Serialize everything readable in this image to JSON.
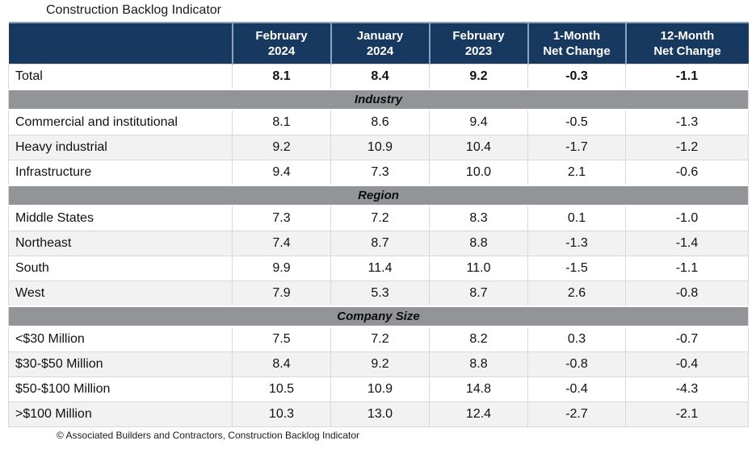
{
  "title": "Construction Backlog Indicator",
  "footer": "© Associated Builders and Contractors, Construction Backlog Indicator",
  "colors": {
    "header_bg": "#17395f",
    "header_text": "#ffffff",
    "header_divider": "#8ca1c0",
    "section_bg": "#929497",
    "row_alt_bg": "#f2f2f2",
    "grid": "#d9d9d9"
  },
  "table": {
    "header": [
      {
        "label": ""
      },
      {
        "label": "February\n2024"
      },
      {
        "label": "January\n2024"
      },
      {
        "label": "February\n2023"
      },
      {
        "label": "1-Month\nNet Change"
      },
      {
        "label": "12-Month\nNet Change"
      }
    ],
    "total_row": {
      "label": "Total",
      "values": [
        "8.1",
        "8.4",
        "9.2",
        "-0.3",
        "-1.1"
      ]
    },
    "sections": [
      {
        "name": "Industry",
        "rows": [
          {
            "label": "Commercial and institutional",
            "values": [
              "8.1",
              "8.6",
              "9.4",
              "-0.5",
              "-1.3"
            ]
          },
          {
            "label": "Heavy industrial",
            "values": [
              "9.2",
              "10.9",
              "10.4",
              "-1.7",
              "-1.2"
            ]
          },
          {
            "label": "Infrastructure",
            "values": [
              "9.4",
              "7.3",
              "10.0",
              "2.1",
              "-0.6"
            ]
          }
        ]
      },
      {
        "name": "Region",
        "rows": [
          {
            "label": "Middle States",
            "values": [
              "7.3",
              "7.2",
              "8.3",
              "0.1",
              "-1.0"
            ]
          },
          {
            "label": "Northeast",
            "values": [
              "7.4",
              "8.7",
              "8.8",
              "-1.3",
              "-1.4"
            ]
          },
          {
            "label": "South",
            "values": [
              "9.9",
              "11.4",
              "11.0",
              "-1.5",
              "-1.1"
            ]
          },
          {
            "label": "West",
            "values": [
              "7.9",
              "5.3",
              "8.7",
              "2.6",
              "-0.8"
            ]
          }
        ]
      },
      {
        "name": "Company Size",
        "rows": [
          {
            "label": "<$30 Million",
            "values": [
              "7.5",
              "7.2",
              "8.2",
              "0.3",
              "-0.7"
            ]
          },
          {
            "label": "$30-$50 Million",
            "values": [
              "8.4",
              "9.2",
              "8.8",
              "-0.8",
              "-0.4"
            ]
          },
          {
            "label": "$50-$100 Million",
            "values": [
              "10.5",
              "10.9",
              "14.8",
              "-0.4",
              "-4.3"
            ]
          },
          {
            "label": ">$100 Million",
            "values": [
              "10.3",
              "13.0",
              "12.4",
              "-2.7",
              "-2.1"
            ]
          }
        ]
      }
    ]
  },
  "chart_data": {
    "type": "table",
    "title": "Construction Backlog Indicator",
    "columns": [
      "",
      "February 2024",
      "January 2024",
      "February 2023",
      "1-Month Net Change",
      "12-Month Net Change"
    ],
    "rows": [
      {
        "label": "Total",
        "section": null,
        "values": [
          8.1,
          8.4,
          9.2,
          -0.3,
          -1.1
        ]
      },
      {
        "label": "Commercial and institutional",
        "section": "Industry",
        "values": [
          8.1,
          8.6,
          9.4,
          -0.5,
          -1.3
        ]
      },
      {
        "label": "Heavy industrial",
        "section": "Industry",
        "values": [
          9.2,
          10.9,
          10.4,
          -1.7,
          -1.2
        ]
      },
      {
        "label": "Infrastructure",
        "section": "Industry",
        "values": [
          9.4,
          7.3,
          10.0,
          2.1,
          -0.6
        ]
      },
      {
        "label": "Middle States",
        "section": "Region",
        "values": [
          7.3,
          7.2,
          8.3,
          0.1,
          -1.0
        ]
      },
      {
        "label": "Northeast",
        "section": "Region",
        "values": [
          7.4,
          8.7,
          8.8,
          -1.3,
          -1.4
        ]
      },
      {
        "label": "South",
        "section": "Region",
        "values": [
          9.9,
          11.4,
          11.0,
          -1.5,
          -1.1
        ]
      },
      {
        "label": "West",
        "section": "Region",
        "values": [
          7.9,
          5.3,
          8.7,
          2.6,
          -0.8
        ]
      },
      {
        "label": "<$30 Million",
        "section": "Company Size",
        "values": [
          7.5,
          7.2,
          8.2,
          0.3,
          -0.7
        ]
      },
      {
        "label": "$30-$50 Million",
        "section": "Company Size",
        "values": [
          8.4,
          9.2,
          8.8,
          -0.8,
          -0.4
        ]
      },
      {
        "label": "$50-$100 Million",
        "section": "Company Size",
        "values": [
          10.5,
          10.9,
          14.8,
          -0.4,
          -4.3
        ]
      },
      {
        "label": ">$100 Million",
        "section": "Company Size",
        "values": [
          10.3,
          13.0,
          12.4,
          -2.7,
          -2.1
        ]
      }
    ],
    "source_note": "© Associated Builders and Contractors, Construction Backlog Indicator"
  }
}
